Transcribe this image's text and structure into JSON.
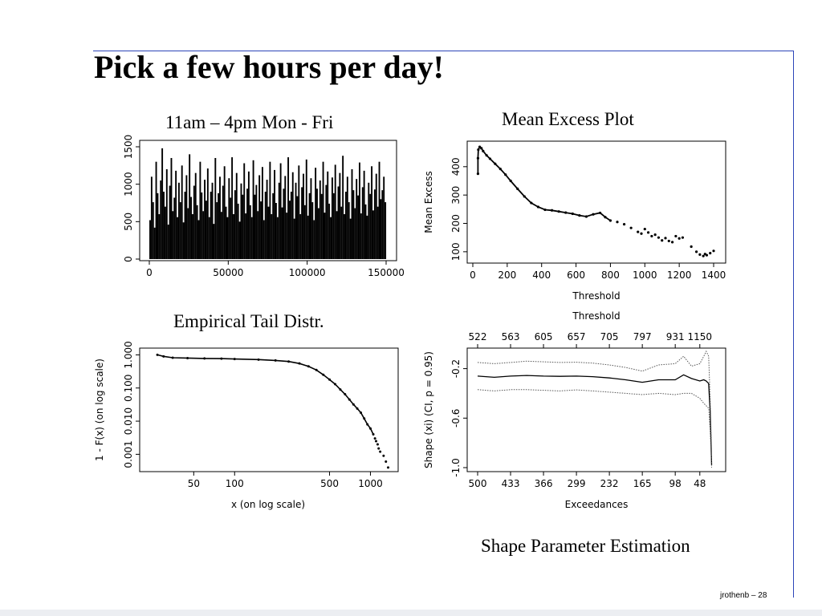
{
  "slide": {
    "title": "Pick a few hours per day!",
    "captions": {
      "ts": "11am – 4pm Mon - Fri",
      "me": "Mean Excess Plot",
      "tail": "Empirical Tail Distr.",
      "shape": "Shape Parameter Estimation"
    },
    "footer": "jrothenb – 28"
  },
  "chart_data": [
    {
      "id": "ts",
      "type": "bar",
      "title": "11am – 4pm Mon - Fri",
      "xlabel": "",
      "ylabel": "",
      "xlim": [
        0,
        150000
      ],
      "ylim": [
        0,
        1500
      ],
      "xticks": [
        "0",
        "50000",
        "100000",
        "150000"
      ],
      "yticks": [
        "0",
        "500",
        "1000",
        "1500"
      ],
      "n_spikes": 150,
      "values": [
        520,
        1100,
        760,
        420,
        1300,
        880,
        600,
        1050,
        1480,
        900,
        700,
        1200,
        460,
        980,
        1350,
        640,
        820,
        1180,
        560,
        1020,
        760,
        1250,
        490,
        900,
        1120,
        680,
        1400,
        830,
        600,
        980,
        1150,
        720,
        520,
        1300,
        890,
        640,
        1060,
        780,
        1210,
        560,
        900,
        1020,
        470,
        1350,
        760,
        880,
        1100,
        630,
        980,
        1240,
        700,
        560,
        1080,
        820,
        1360,
        600,
        920,
        1150,
        740,
        500,
        1010,
        860,
        1280,
        610,
        940,
        1170,
        720,
        560,
        1320,
        860,
        990,
        640,
        1120,
        770,
        1230,
        520,
        900,
        1060,
        700,
        1300,
        600,
        880,
        1190,
        750,
        560,
        1020,
        1280,
        690,
        940,
        1110,
        620,
        1360,
        780,
        900,
        1160,
        540,
        1020,
        840,
        1250,
        600,
        960,
        1140,
        720,
        1330,
        580,
        880,
        1080,
        760,
        520,
        1220,
        940,
        680,
        1050,
        870,
        1300,
        620,
        990,
        1170,
        740,
        560,
        1090,
        880,
        1260,
        640,
        970,
        1150,
        700,
        1380,
        600,
        900,
        1100,
        760,
        540,
        1200,
        920,
        680,
        1070,
        850,
        1290,
        610,
        960,
        1180,
        730,
        580,
        1020,
        870,
        1240,
        650,
        930,
        1140,
        700,
        1300,
        800,
        920,
        1100,
        760
      ]
    },
    {
      "id": "me",
      "type": "scatter",
      "title": "Mean Excess Plot",
      "xlabel": "Threshold",
      "ylabel": "Mean Excess",
      "xlim": [
        0,
        1400
      ],
      "ylim": [
        60,
        490
      ],
      "xticks": [
        "0",
        "200",
        "400",
        "600",
        "800",
        "1000",
        "1200",
        "1400"
      ],
      "yticks": [
        "100",
        "200",
        "300",
        "400"
      ],
      "points": [
        [
          30,
          375
        ],
        [
          30,
          430
        ],
        [
          32,
          460
        ],
        [
          40,
          470
        ],
        [
          50,
          465
        ],
        [
          60,
          455
        ],
        [
          80,
          440
        ],
        [
          100,
          428
        ],
        [
          130,
          410
        ],
        [
          160,
          392
        ],
        [
          190,
          372
        ],
        [
          220,
          350
        ],
        [
          260,
          322
        ],
        [
          300,
          295
        ],
        [
          340,
          272
        ],
        [
          380,
          258
        ],
        [
          420,
          248
        ],
        [
          460,
          246
        ],
        [
          500,
          242
        ],
        [
          540,
          238
        ],
        [
          580,
          234
        ],
        [
          620,
          228
        ],
        [
          660,
          224
        ],
        [
          700,
          232
        ],
        [
          740,
          237
        ],
        [
          770,
          222
        ],
        [
          800,
          210
        ],
        [
          840,
          205
        ],
        [
          880,
          197
        ],
        [
          920,
          184
        ],
        [
          960,
          170
        ],
        [
          980,
          164
        ],
        [
          1000,
          180
        ],
        [
          1020,
          168
        ],
        [
          1040,
          155
        ],
        [
          1060,
          160
        ],
        [
          1080,
          150
        ],
        [
          1100,
          140
        ],
        [
          1120,
          148
        ],
        [
          1140,
          138
        ],
        [
          1160,
          134
        ],
        [
          1180,
          155
        ],
        [
          1200,
          147
        ],
        [
          1220,
          150
        ],
        [
          1270,
          118
        ],
        [
          1300,
          100
        ],
        [
          1320,
          90
        ],
        [
          1340,
          85
        ],
        [
          1350,
          92
        ],
        [
          1360,
          88
        ],
        [
          1380,
          95
        ],
        [
          1400,
          103
        ]
      ]
    },
    {
      "id": "tail",
      "type": "scatter",
      "title": "Empirical Tail Distr.",
      "xlabel": "x (on log scale)",
      "ylabel": "1 - F(x) (on log scale)",
      "xlog": true,
      "ylog": true,
      "xlim": [
        20,
        1600
      ],
      "ylim": [
        0.0003,
        1.6
      ],
      "xticks": [
        "50",
        "100",
        "500",
        "1000"
      ],
      "yticks": [
        "0.001",
        "0.010",
        "0.100",
        "1.000"
      ],
      "points": [
        [
          27,
          1.0
        ],
        [
          30,
          0.9
        ],
        [
          35,
          0.82
        ],
        [
          45,
          0.8
        ],
        [
          60,
          0.78
        ],
        [
          80,
          0.77
        ],
        [
          100,
          0.75
        ],
        [
          150,
          0.72
        ],
        [
          200,
          0.68
        ],
        [
          250,
          0.63
        ],
        [
          300,
          0.55
        ],
        [
          350,
          0.45
        ],
        [
          400,
          0.35
        ],
        [
          450,
          0.25
        ],
        [
          500,
          0.18
        ],
        [
          550,
          0.13
        ],
        [
          600,
          0.09
        ],
        [
          650,
          0.065
        ],
        [
          700,
          0.045
        ],
        [
          750,
          0.032
        ],
        [
          800,
          0.024
        ],
        [
          850,
          0.018
        ],
        [
          900,
          0.012
        ],
        [
          950,
          0.008
        ],
        [
          1000,
          0.006
        ],
        [
          1050,
          0.004
        ],
        [
          1080,
          0.003
        ],
        [
          1100,
          0.0025
        ],
        [
          1130,
          0.002
        ],
        [
          1150,
          0.0015
        ],
        [
          1180,
          0.0012
        ],
        [
          1250,
          0.0009
        ],
        [
          1300,
          0.0006
        ],
        [
          1350,
          0.0004
        ]
      ]
    },
    {
      "id": "shape",
      "type": "line",
      "title": "Shape Parameter Estimation",
      "xlabel": "Exceedances",
      "ylabel": "Shape (xi) (CI, p = 0.95)",
      "top_axis_label": "Threshold",
      "xlim": [
        500,
        15
      ],
      "ylim": [
        -1.0,
        -0.06
      ],
      "xticks": [
        "500",
        "433",
        "366",
        "299",
        "232",
        "165",
        "98",
        "48"
      ],
      "top_ticks": [
        "522",
        "563",
        "605",
        "657",
        "705",
        "797",
        "931",
        "1150"
      ],
      "yticks": [
        "-1.0",
        "-0.6",
        "-0.2"
      ],
      "series": [
        {
          "role": "estimate",
          "style": "solid",
          "x": [
            500,
            466,
            433,
            400,
            366,
            333,
            299,
            266,
            232,
            199,
            165,
            132,
            98,
            81,
            65,
            48,
            40,
            35,
            30,
            27,
            24
          ],
          "y": [
            -0.26,
            -0.27,
            -0.26,
            -0.255,
            -0.26,
            -0.262,
            -0.26,
            -0.265,
            -0.275,
            -0.29,
            -0.31,
            -0.29,
            -0.29,
            -0.25,
            -0.28,
            -0.3,
            -0.29,
            -0.3,
            -0.32,
            -0.55,
            -0.98
          ]
        },
        {
          "role": "upper",
          "style": "dotted",
          "x": [
            500,
            466,
            433,
            400,
            366,
            333,
            299,
            266,
            232,
            199,
            165,
            132,
            98,
            81,
            65,
            48,
            40,
            35,
            30,
            27,
            24
          ],
          "y": [
            -0.15,
            -0.16,
            -0.15,
            -0.14,
            -0.145,
            -0.15,
            -0.148,
            -0.155,
            -0.17,
            -0.19,
            -0.22,
            -0.17,
            -0.16,
            -0.1,
            -0.18,
            -0.16,
            -0.1,
            -0.06,
            -0.1,
            -0.45,
            -0.9
          ]
        },
        {
          "role": "lower",
          "style": "dotted",
          "x": [
            500,
            466,
            433,
            400,
            366,
            333,
            299,
            266,
            232,
            199,
            165,
            132,
            98,
            81,
            65,
            48,
            40,
            35,
            30,
            27,
            24
          ],
          "y": [
            -0.37,
            -0.38,
            -0.37,
            -0.37,
            -0.375,
            -0.38,
            -0.372,
            -0.38,
            -0.39,
            -0.4,
            -0.41,
            -0.4,
            -0.41,
            -0.4,
            -0.4,
            -0.44,
            -0.48,
            -0.5,
            -0.52,
            -0.7,
            -1.0
          ]
        }
      ]
    }
  ]
}
